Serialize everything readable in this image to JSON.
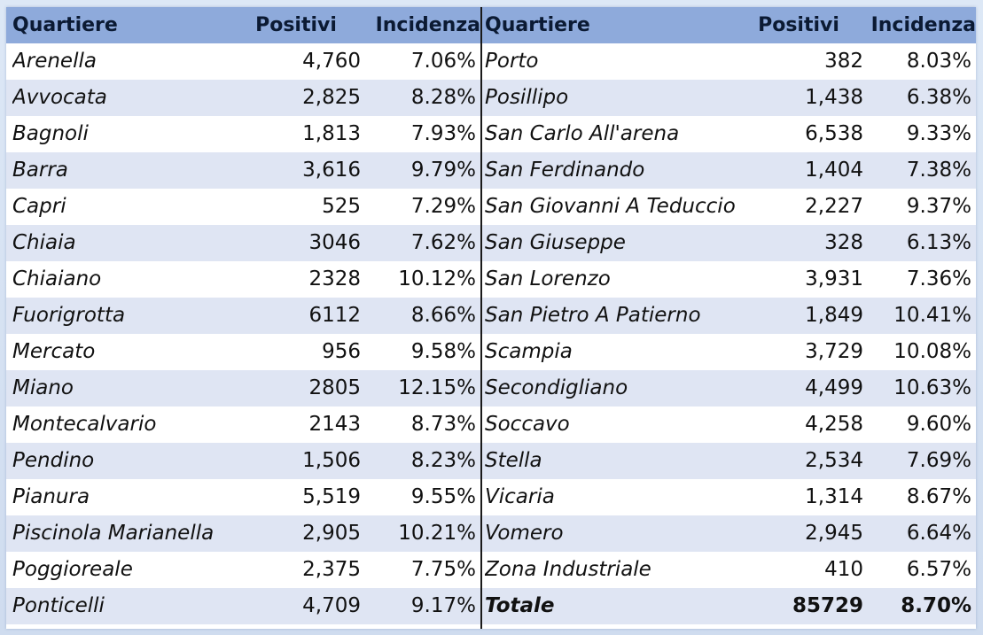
{
  "table": {
    "headers": [
      "Quartiere",
      "Positivi",
      "Incidenza"
    ],
    "left_rows": [
      {
        "quartiere": "Arenella",
        "positivi": "4,760",
        "incidenza": "7.06%"
      },
      {
        "quartiere": "Avvocata",
        "positivi": "2,825",
        "incidenza": "8.28%"
      },
      {
        "quartiere": "Bagnoli",
        "positivi": "1,813",
        "incidenza": "7.93%"
      },
      {
        "quartiere": "Barra",
        "positivi": "3,616",
        "incidenza": "9.79%"
      },
      {
        "quartiere": "Capri",
        "positivi": "525",
        "incidenza": "7.29%"
      },
      {
        "quartiere": "Chiaia",
        "positivi": "3046",
        "incidenza": "7.62%"
      },
      {
        "quartiere": "Chiaiano",
        "positivi": "2328",
        "incidenza": "10.12%"
      },
      {
        "quartiere": "Fuorigrotta",
        "positivi": "6112",
        "incidenza": "8.66%"
      },
      {
        "quartiere": "Mercato",
        "positivi": "956",
        "incidenza": "9.58%"
      },
      {
        "quartiere": "Miano",
        "positivi": "2805",
        "incidenza": "12.15%"
      },
      {
        "quartiere": "Montecalvario",
        "positivi": "2143",
        "incidenza": "8.73%"
      },
      {
        "quartiere": "Pendino",
        "positivi": "1,506",
        "incidenza": "8.23%"
      },
      {
        "quartiere": "Pianura",
        "positivi": "5,519",
        "incidenza": "9.55%"
      },
      {
        "quartiere": "Piscinola Marianella",
        "positivi": "2,905",
        "incidenza": "10.21%"
      },
      {
        "quartiere": "Poggioreale",
        "positivi": "2,375",
        "incidenza": "7.75%"
      },
      {
        "quartiere": "Ponticelli",
        "positivi": "4,709",
        "incidenza": "9.17%"
      }
    ],
    "right_rows": [
      {
        "quartiere": "Porto",
        "positivi": "382",
        "incidenza": "8.03%"
      },
      {
        "quartiere": "Posillipo",
        "positivi": "1,438",
        "incidenza": "6.38%"
      },
      {
        "quartiere": "San Carlo All'arena",
        "positivi": "6,538",
        "incidenza": "9.33%"
      },
      {
        "quartiere": "San Ferdinando",
        "positivi": "1,404",
        "incidenza": "7.38%"
      },
      {
        "quartiere": "San Giovanni A Teduccio",
        "positivi": "2,227",
        "incidenza": "9.37%"
      },
      {
        "quartiere": "San Giuseppe",
        "positivi": "328",
        "incidenza": "6.13%"
      },
      {
        "quartiere": "San Lorenzo",
        "positivi": "3,931",
        "incidenza": "7.36%"
      },
      {
        "quartiere": "San Pietro A Patierno",
        "positivi": "1,849",
        "incidenza": "10.41%"
      },
      {
        "quartiere": "Scampia",
        "positivi": "3,729",
        "incidenza": "10.08%"
      },
      {
        "quartiere": "Secondigliano",
        "positivi": "4,499",
        "incidenza": "10.63%"
      },
      {
        "quartiere": "Soccavo",
        "positivi": "4,258",
        "incidenza": "9.60%"
      },
      {
        "quartiere": "Stella",
        "positivi": "2,534",
        "incidenza": "7.69%"
      },
      {
        "quartiere": "Vicaria",
        "positivi": "1,314",
        "incidenza": "8.67%"
      },
      {
        "quartiere": "Vomero",
        "positivi": "2,945",
        "incidenza": "6.64%"
      },
      {
        "quartiere": "Zona Industriale",
        "positivi": "410",
        "incidenza": "6.57%"
      },
      {
        "quartiere": "Totale",
        "positivi": "85729",
        "incidenza": "8.70%",
        "bold": true
      }
    ]
  },
  "colors": {
    "header_bg": "#8eaadb",
    "band_bg": "#dfe5f3",
    "divider": "#1a1a1a"
  }
}
